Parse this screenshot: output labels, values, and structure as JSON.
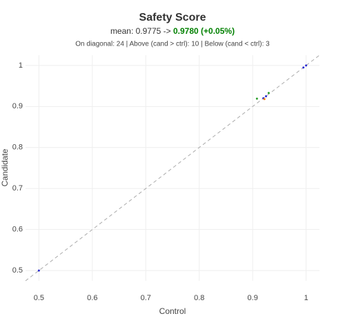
{
  "chart_data": {
    "type": "scatter",
    "title": "Safety Score",
    "subtitle": "mean: 0.9775 -> ",
    "subtitle_highlight": "0.9780 (+0.05%)",
    "subtitle_highlight_color": "#008000",
    "annotation": "On diagonal: 24 | Above (cand > ctrl): 10 | Below (cand < ctrl): 3",
    "xlabel": "Control",
    "ylabel": "Candidate",
    "xlim": [
      0.475,
      1.025
    ],
    "ylim": [
      0.475,
      1.025
    ],
    "xticks": [
      0.5,
      0.6,
      0.7,
      0.8,
      0.9,
      1
    ],
    "yticks": [
      0.5,
      0.6,
      0.7,
      0.8,
      0.9,
      1
    ],
    "grid": true,
    "diagonal": true,
    "series": [
      {
        "color": "#2a2ad0",
        "x": [
          0.5,
          0.92,
          0.925,
          0.995,
          1
        ],
        "values": [
          0.5,
          0.92,
          0.925,
          0.995,
          1
        ]
      },
      {
        "color": "#2ca02c",
        "x": [
          0.908,
          0.93
        ],
        "values": [
          0.919,
          0.933
        ]
      },
      {
        "color": "#ff7f0e",
        "x": [
          0.922
        ],
        "values": [
          0.918
        ]
      }
    ]
  }
}
